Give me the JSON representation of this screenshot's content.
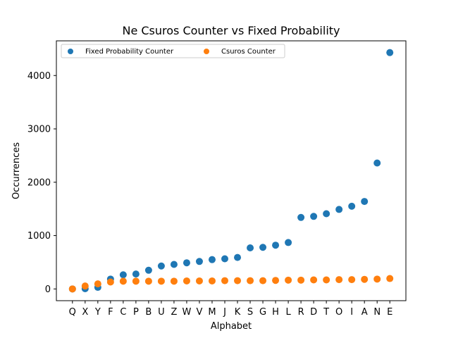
{
  "chart_data": {
    "type": "scatter",
    "title": "Ne Csuros Counter vs Fixed Probability",
    "xlabel": "Alphabet",
    "ylabel": "Occurrences",
    "categories": [
      "Q",
      "X",
      "Y",
      "F",
      "C",
      "P",
      "B",
      "U",
      "Z",
      "W",
      "V",
      "M",
      "J",
      "K",
      "S",
      "G",
      "H",
      "L",
      "R",
      "D",
      "T",
      "O",
      "I",
      "A",
      "N",
      "E"
    ],
    "ylim": [
      -220,
      4650
    ],
    "yticks": [
      0,
      1000,
      2000,
      3000,
      4000
    ],
    "grid": false,
    "legend_position": "top-left",
    "series": [
      {
        "name": "Fixed Probability Counter",
        "color": "#1f77b4",
        "values": [
          0,
          5,
          30,
          185,
          265,
          280,
          350,
          430,
          460,
          490,
          515,
          550,
          565,
          590,
          770,
          780,
          820,
          870,
          1340,
          1360,
          1410,
          1490,
          1550,
          1640,
          2360,
          4430
        ]
      },
      {
        "name": "Csuros Counter",
        "color": "#ff7f0e",
        "values": [
          0,
          55,
          95,
          130,
          145,
          145,
          145,
          145,
          145,
          150,
          150,
          150,
          155,
          155,
          155,
          155,
          160,
          165,
          165,
          170,
          170,
          175,
          175,
          180,
          185,
          195
        ]
      }
    ]
  }
}
